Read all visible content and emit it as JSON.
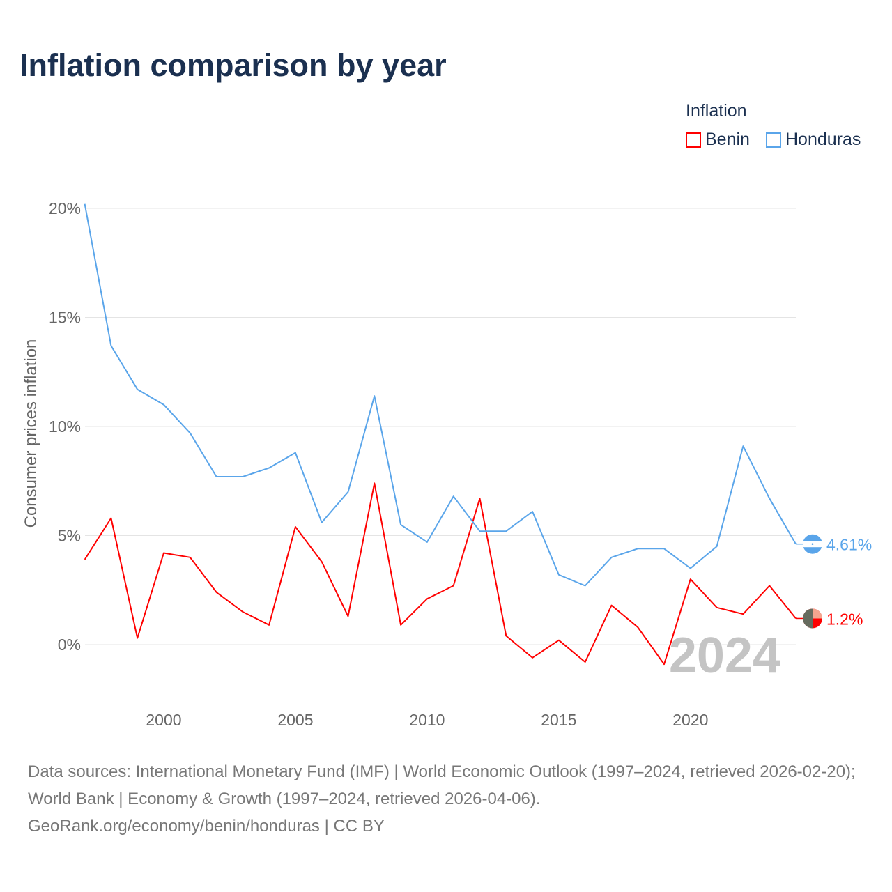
{
  "title": "Inflation comparison by year",
  "legend": {
    "title": "Inflation",
    "items": [
      "Benin",
      "Honduras"
    ]
  },
  "sources": {
    "line1": "Data sources: International Monetary Fund (IMF) | World Economic Outlook (1997–2024, retrieved 2026-02-20); World Bank | Economy & Growth (1997–2024, retrieved 2026-04-06).",
    "line2": "GeoRank.org/economy/benin/honduras | CC BY"
  },
  "colors": {
    "Benin": "#ff0000",
    "Honduras": "#5aa5ea"
  },
  "chart_data": {
    "type": "line",
    "title": "Inflation comparison by year",
    "xlabel": "",
    "ylabel": "Consumer prices inflation",
    "x": [
      1997,
      1998,
      1999,
      2000,
      2001,
      2002,
      2003,
      2004,
      2005,
      2006,
      2007,
      2008,
      2009,
      2010,
      2011,
      2012,
      2013,
      2014,
      2015,
      2016,
      2017,
      2018,
      2019,
      2020,
      2021,
      2022,
      2023,
      2024
    ],
    "xticks": [
      2000,
      2005,
      2010,
      2015,
      2020
    ],
    "yticks": [
      0,
      5,
      10,
      15,
      20
    ],
    "ytick_labels": [
      "0%",
      "5%",
      "10%",
      "15%",
      "20%"
    ],
    "ylim": [
      -2.6,
      20.5
    ],
    "xlim": [
      1997,
      2024
    ],
    "grid": true,
    "legend_position": "top-right",
    "year_label": "2024",
    "series": [
      {
        "name": "Benin",
        "end_label": "1.2%",
        "values": [
          3.9,
          5.8,
          0.3,
          4.2,
          4.0,
          2.4,
          1.5,
          0.9,
          5.4,
          3.8,
          1.3,
          7.4,
          0.9,
          2.1,
          2.7,
          6.7,
          0.4,
          -0.6,
          0.2,
          -0.8,
          1.8,
          0.8,
          -0.9,
          3.0,
          1.7,
          1.4,
          2.7,
          1.2
        ]
      },
      {
        "name": "Honduras",
        "end_label": "4.61%",
        "values": [
          20.2,
          13.7,
          11.7,
          11.0,
          9.7,
          7.7,
          7.7,
          8.1,
          8.8,
          5.6,
          7.0,
          11.4,
          5.5,
          4.7,
          6.8,
          5.2,
          5.2,
          6.1,
          3.2,
          2.7,
          4.0,
          4.4,
          4.4,
          3.5,
          4.5,
          9.1,
          6.7,
          4.61
        ]
      }
    ]
  }
}
